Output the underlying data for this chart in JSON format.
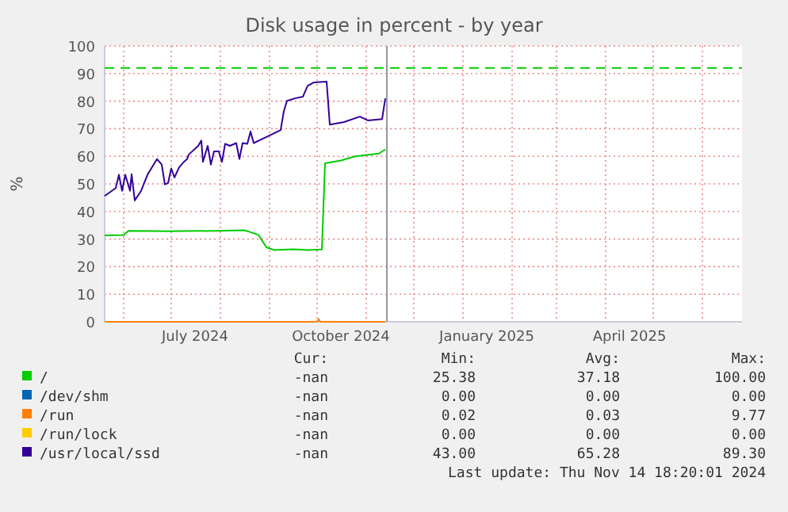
{
  "chart_data": {
    "type": "line",
    "title": "Disk usage in percent - by year",
    "ylabel": "%",
    "xlim": [
      "2024-05-20",
      "2025-06-26"
    ],
    "xticks": [
      {
        "value": "2024-06-01",
        "label": null
      },
      {
        "value": "2024-07-01",
        "label": null
      },
      {
        "value": "2024-07-16",
        "label": "July 2024"
      },
      {
        "value": "2024-08-01",
        "label": null
      },
      {
        "value": "2024-09-01",
        "label": null
      },
      {
        "value": "2024-10-01",
        "label": null
      },
      {
        "value": "2024-10-16",
        "label": "October 2024"
      },
      {
        "value": "2024-11-01",
        "label": null
      },
      {
        "value": "2024-12-01",
        "label": null
      },
      {
        "value": "2025-01-01",
        "label": null
      },
      {
        "value": "2025-01-16",
        "label": "January 2025"
      },
      {
        "value": "2025-02-01",
        "label": null
      },
      {
        "value": "2025-03-01",
        "label": null
      },
      {
        "value": "2025-04-01",
        "label": null
      },
      {
        "value": "2025-04-16",
        "label": "April 2025"
      },
      {
        "value": "2025-05-01",
        "label": null
      },
      {
        "value": "2025-06-01",
        "label": null
      }
    ],
    "ylim": [
      0,
      100
    ],
    "yticks": [
      0,
      10,
      20,
      30,
      40,
      50,
      60,
      70,
      80,
      90,
      100
    ],
    "grid": true,
    "legend": "bottom",
    "line_style": "solid",
    "marker": "none",
    "series": [
      {
        "name": "/",
        "color": "#00cc00",
        "x": [
          "2024-05-20",
          "2024-06-01",
          "2024-06-04",
          "2024-06-30",
          "2024-07-30",
          "2024-08-16",
          "2024-08-20",
          "2024-08-25",
          "2024-08-30",
          "2024-09-04",
          "2024-09-16",
          "2024-09-25",
          "2024-10-04",
          "2024-10-06",
          "2024-10-16",
          "2024-10-25",
          "2024-11-09",
          "2024-11-13"
        ],
        "values": [
          31.3,
          31.5,
          33,
          32.8,
          33,
          33.2,
          32.5,
          31.5,
          27,
          26,
          26.3,
          26,
          26.2,
          57.5,
          58.5,
          60,
          61,
          62.5
        ]
      },
      {
        "name": "/dev/shm",
        "color": "#0066b3"
      },
      {
        "name": "/run",
        "color": "#ff8000",
        "x": [
          "2024-05-20",
          "2024-10-01",
          "2024-10-02",
          "2024-10-03",
          "2024-11-13"
        ],
        "values": [
          0,
          0,
          1,
          0,
          0
        ]
      },
      {
        "name": "/run/lock",
        "color": "#ffcc00"
      },
      {
        "name": "/usr/local/ssd",
        "color": "#330099",
        "x": [
          "2024-05-20",
          "2024-05-27",
          "2024-05-29",
          "2024-05-31",
          "2024-06-02",
          "2024-06-05",
          "2024-06-06",
          "2024-06-08",
          "2024-06-12",
          "2024-06-16",
          "2024-06-22",
          "2024-06-25",
          "2024-06-27",
          "2024-06-29",
          "2024-07-01",
          "2024-07-03",
          "2024-07-06",
          "2024-07-09",
          "2024-07-11",
          "2024-07-12",
          "2024-07-18",
          "2024-07-20",
          "2024-07-21",
          "2024-07-24",
          "2024-07-26",
          "2024-07-28",
          "2024-07-31",
          "2024-08-02",
          "2024-08-04",
          "2024-08-07",
          "2024-08-11",
          "2024-08-13",
          "2024-08-15",
          "2024-08-18",
          "2024-08-20",
          "2024-08-22",
          "2024-08-30",
          "2024-09-08",
          "2024-09-10",
          "2024-09-12",
          "2024-09-17",
          "2024-09-22",
          "2024-09-25",
          "2024-09-29",
          "2024-10-07",
          "2024-10-09",
          "2024-10-18",
          "2024-10-28",
          "2024-11-02",
          "2024-11-11",
          "2024-11-13"
        ],
        "values": [
          45.6,
          48.5,
          53.3,
          47.5,
          53.3,
          47.5,
          53.5,
          44,
          47.5,
          53.3,
          59,
          57,
          49.8,
          50.3,
          55.6,
          52.3,
          56,
          58,
          59,
          60.6,
          63.8,
          65.7,
          58,
          63.8,
          57,
          61.8,
          61.8,
          58,
          64.5,
          63.8,
          64.8,
          59,
          64.8,
          64.5,
          69,
          64.8,
          67,
          69.5,
          76.3,
          80.1,
          81,
          81.6,
          85.5,
          86.8,
          87.1,
          71.5,
          72.4,
          74.4,
          73,
          73.5,
          81
        ]
      }
    ],
    "ref_lines": [
      {
        "axis": "y",
        "value": 92,
        "color": "#00cc00",
        "line_style": "dashed"
      },
      {
        "axis": "x",
        "value": "2024-11-14",
        "color": "#999999",
        "line_style": "solid"
      }
    ],
    "annotations": [
      "Cur:",
      "Min:",
      "Avg:",
      "Max:",
      "-nan",
      "25.38",
      "37.18",
      "100.00",
      "-nan",
      "0.00",
      "0.00",
      "0.00",
      "-nan",
      "0.02",
      "0.03",
      "9.77",
      "-nan",
      "0.00",
      "0.00",
      "0.00",
      "-nan",
      "43.00",
      "65.28",
      "89.30",
      "Last update: Thu Nov 14 18:20:01 2024"
    ]
  }
}
